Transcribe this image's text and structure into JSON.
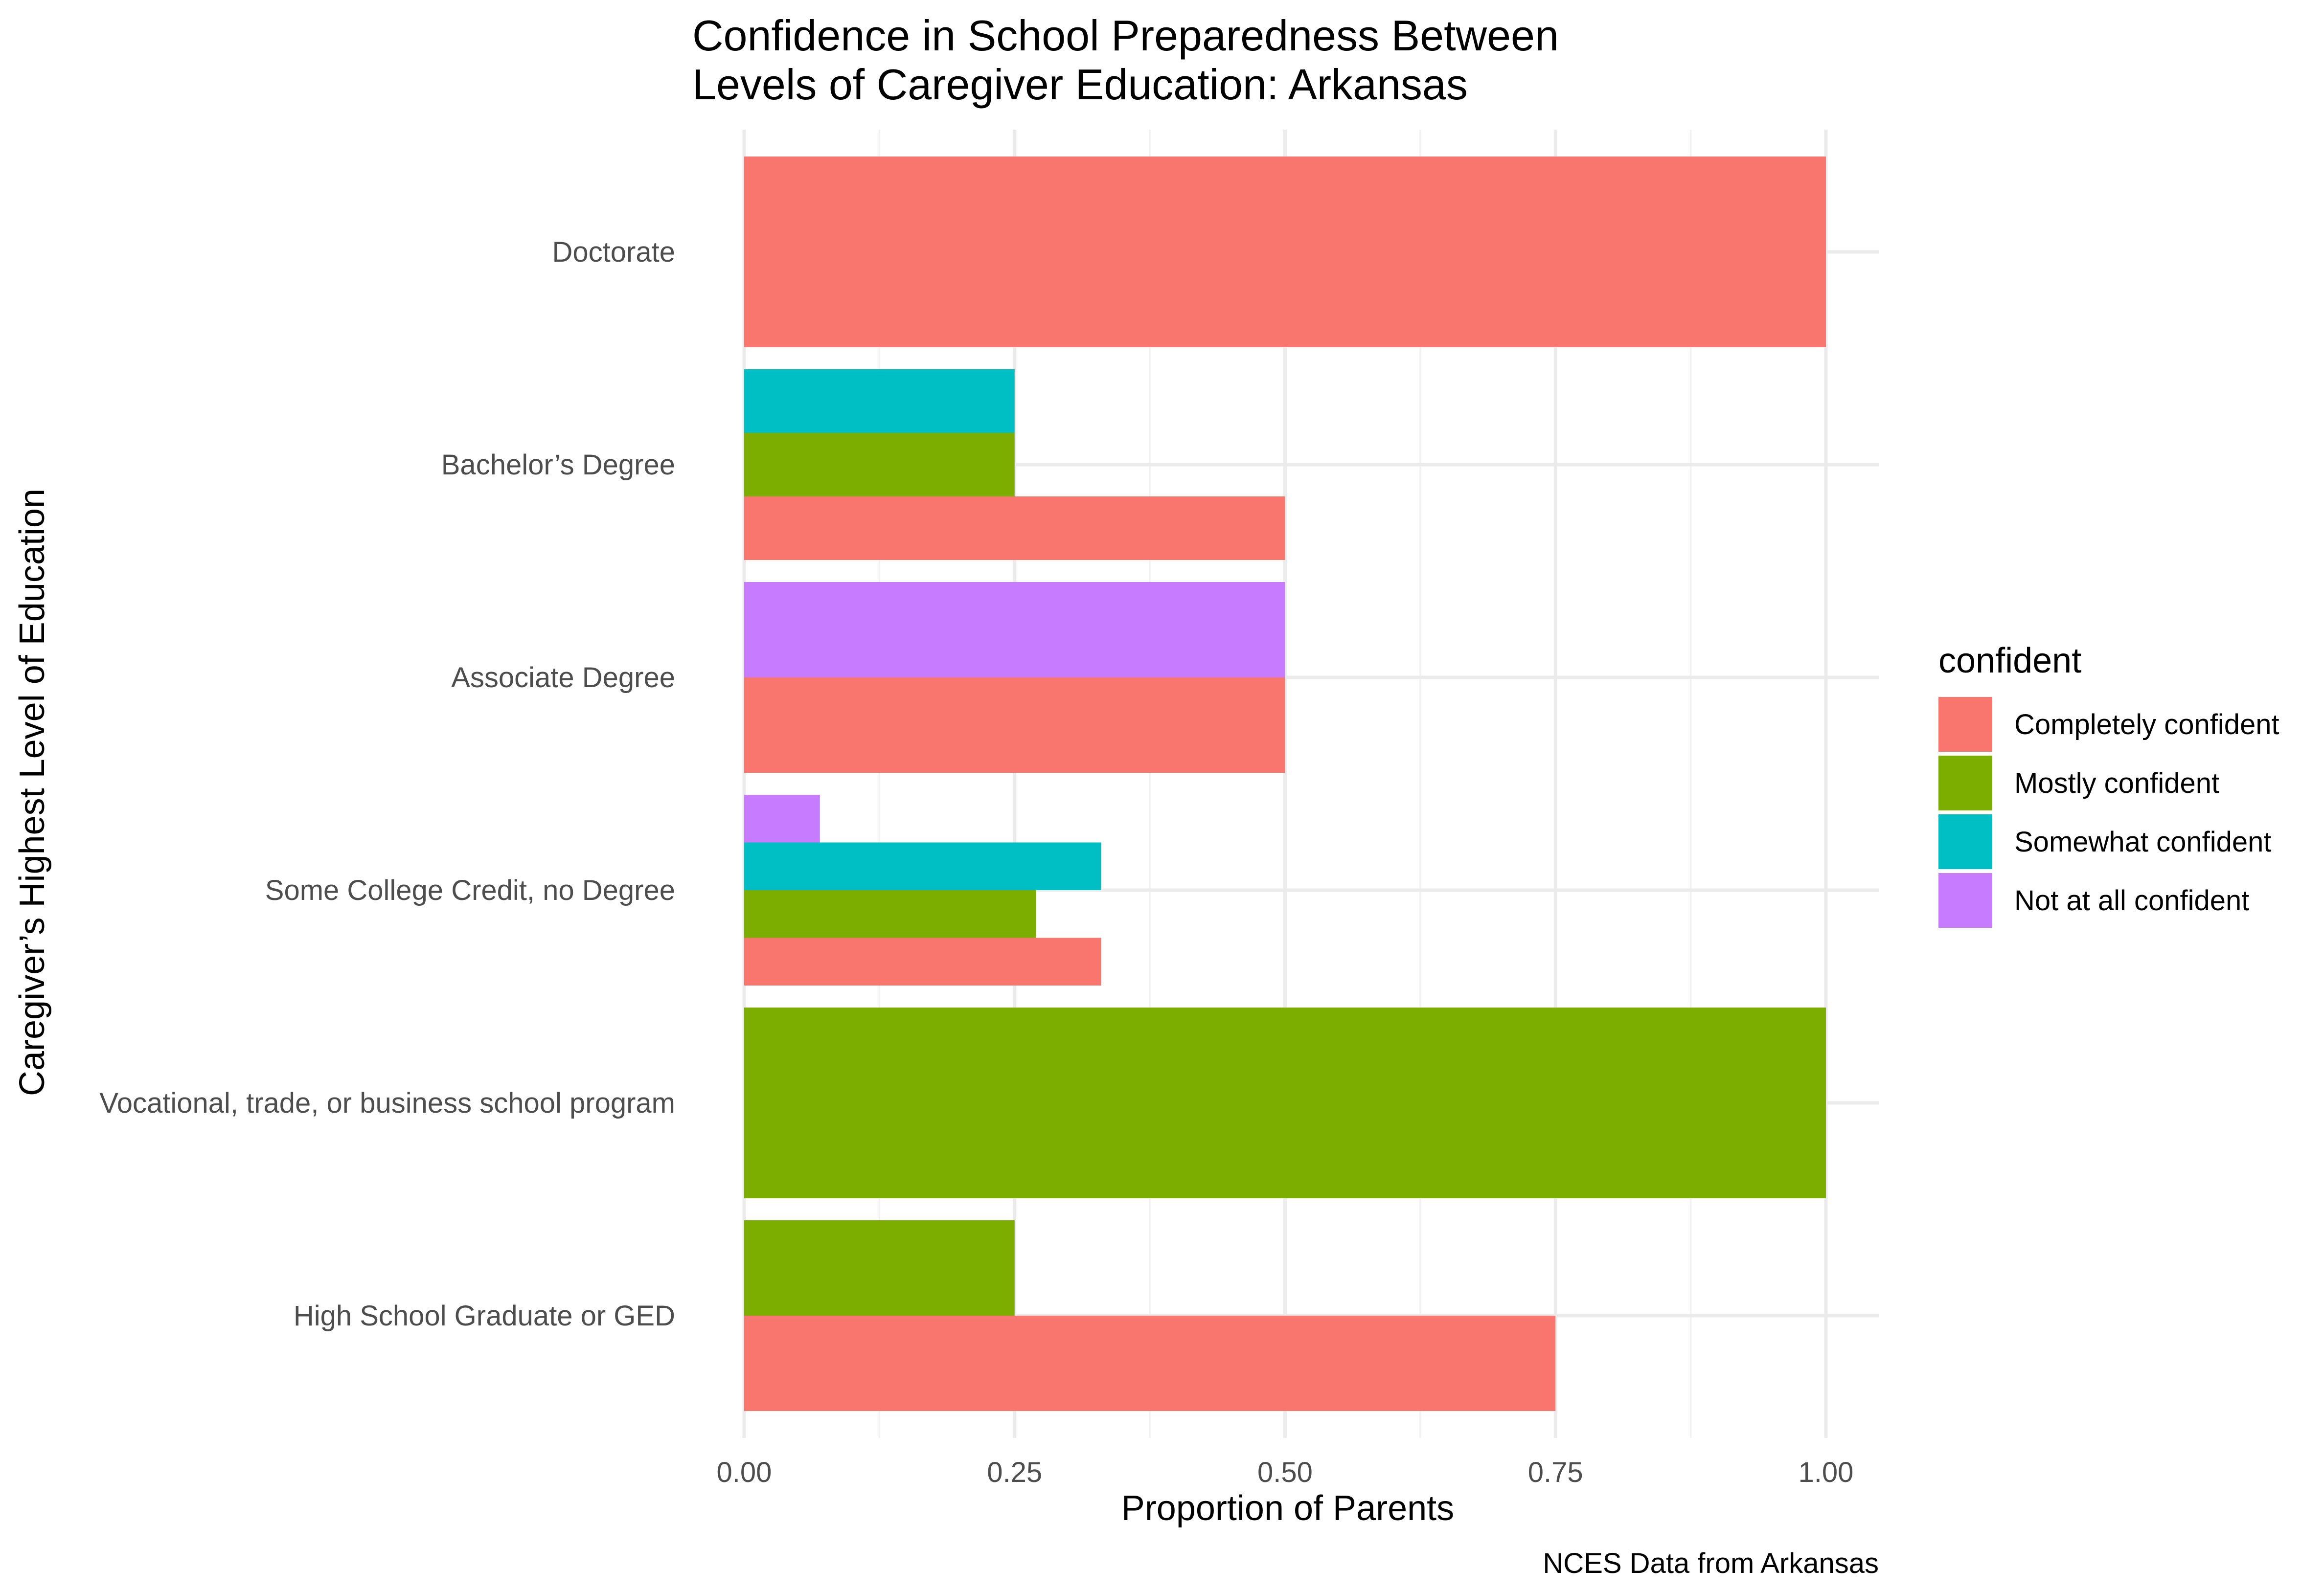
{
  "chart_data": {
    "type": "bar",
    "orientation": "horizontal",
    "title": "Confidence in School Preparedness Between Levels of Caregiver Education: Arkansas",
    "title_lines": [
      "Confidence in School Preparedness Between",
      "Levels of Caregiver Education: Arkansas"
    ],
    "xlabel": "Proportion of Parents",
    "ylabel": "Caregiver’s Highest Level of Education",
    "caption": "NCES Data from Arkansas",
    "xlim": [
      0,
      1
    ],
    "x_ticks": [
      0,
      0.25,
      0.5,
      0.75,
      1.0
    ],
    "x_tick_labels": [
      "0.00",
      "0.25",
      "0.50",
      "0.75",
      "1.00"
    ],
    "grid": true,
    "legend": {
      "title": "confident",
      "position": "right",
      "entries": [
        {
          "name": "Completely confident",
          "color": "#F8766D"
        },
        {
          "name": "Mostly confident",
          "color": "#7CAE00"
        },
        {
          "name": "Somewhat confident",
          "color": "#00BFC4"
        },
        {
          "name": "Not at all confident",
          "color": "#C77CFF"
        }
      ]
    },
    "categories": [
      "Doctorate",
      "Bachelor’s Degree",
      "Associate Degree",
      "Some College Credit, no Degree",
      "Vocational, trade, or business school program",
      "High School Graduate or GED"
    ],
    "groups": [
      {
        "category": "Doctorate",
        "bars": [
          {
            "series": "Completely confident",
            "value": 1.0
          }
        ]
      },
      {
        "category": "Bachelor’s Degree",
        "bars": [
          {
            "series": "Completely confident",
            "value": 0.5
          },
          {
            "series": "Mostly confident",
            "value": 0.25
          },
          {
            "series": "Somewhat confident",
            "value": 0.25
          }
        ]
      },
      {
        "category": "Associate Degree",
        "bars": [
          {
            "series": "Completely confident",
            "value": 0.5
          },
          {
            "series": "Not at all confident",
            "value": 0.5
          }
        ]
      },
      {
        "category": "Some College Credit, no Degree",
        "bars": [
          {
            "series": "Completely confident",
            "value": 0.33
          },
          {
            "series": "Mostly confident",
            "value": 0.27
          },
          {
            "series": "Somewhat confident",
            "value": 0.33
          },
          {
            "series": "Not at all confident",
            "value": 0.07
          }
        ]
      },
      {
        "category": "Vocational, trade, or business school program",
        "bars": [
          {
            "series": "Mostly confident",
            "value": 1.0
          }
        ]
      },
      {
        "category": "High School Graduate or GED",
        "bars": [
          {
            "series": "Completely confident",
            "value": 0.75
          },
          {
            "series": "Mostly confident",
            "value": 0.25
          }
        ]
      }
    ]
  }
}
